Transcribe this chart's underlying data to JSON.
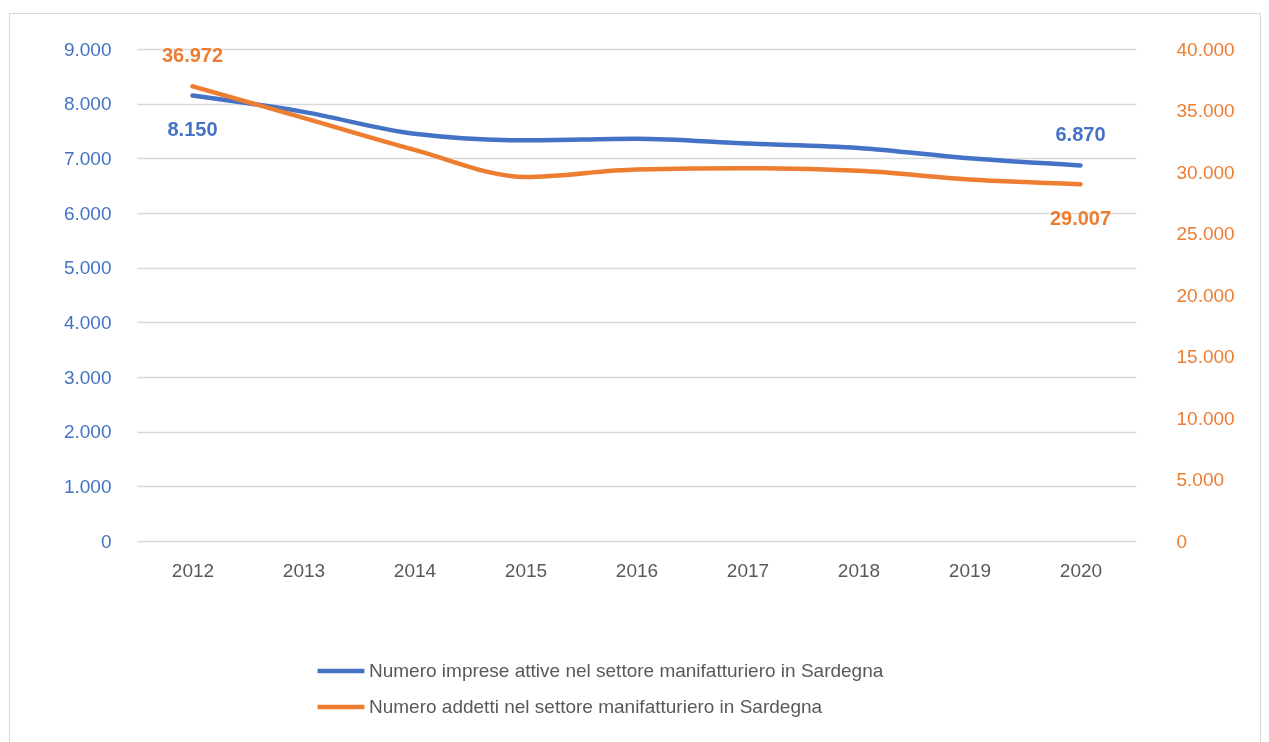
{
  "chart_data": {
    "type": "line",
    "categories": [
      "2012",
      "2013",
      "2014",
      "2015",
      "2016",
      "2017",
      "2018",
      "2019",
      "2020"
    ],
    "series": [
      {
        "name": "Numero imprese attive nel settore manifatturiero in Sardegna",
        "color": "#4472c4",
        "values": [
          8150,
          7850,
          7450,
          7330,
          7360,
          7270,
          7190,
          7000,
          6870
        ],
        "value_labels": [
          "8.150",
          null,
          null,
          null,
          null,
          null,
          null,
          null,
          "6.870"
        ]
      },
      {
        "name": "Numero addetti nel settore manifatturiero in Sardegna",
        "color": "#ed7d31",
        "axis": "y2",
        "values": [
          36972,
          34400,
          31800,
          29600,
          30200,
          30300,
          30100,
          29400,
          29007
        ],
        "value_labels": [
          "36.972",
          null,
          null,
          null,
          null,
          null,
          null,
          null,
          "29.007"
        ]
      }
    ],
    "ylim": [
      0,
      9000
    ],
    "yticks": [
      0,
      {
        "value": 1000,
        "label": "1.000"
      },
      {
        "value": 2000,
        "label": "2.000"
      },
      {
        "value": 3000,
        "label": "3.000"
      },
      {
        "value": 4000,
        "label": "4.000"
      },
      {
        "value": 5000,
        "label": "5.000"
      },
      {
        "value": 6000,
        "label": "6.000"
      },
      {
        "value": 7000,
        "label": "7.000"
      },
      {
        "value": 8000,
        "label": "8.000"
      },
      {
        "value": 9000,
        "label": "9.000"
      }
    ],
    "y2lim": [
      0,
      40000
    ],
    "y2ticks": [
      0,
      {
        "value": 5000,
        "label": "5.000"
      },
      {
        "value": 10000,
        "label": "10.000"
      },
      {
        "value": 15000,
        "label": "15.000"
      },
      {
        "value": 20000,
        "label": "20.000"
      },
      {
        "value": 25000,
        "label": "25.000"
      },
      {
        "value": 30000,
        "label": "30.000"
      },
      {
        "value": 35000,
        "label": "35.000"
      },
      {
        "value": 40000,
        "label": "40.000"
      }
    ],
    "grid": "y",
    "legend": "bottom"
  }
}
